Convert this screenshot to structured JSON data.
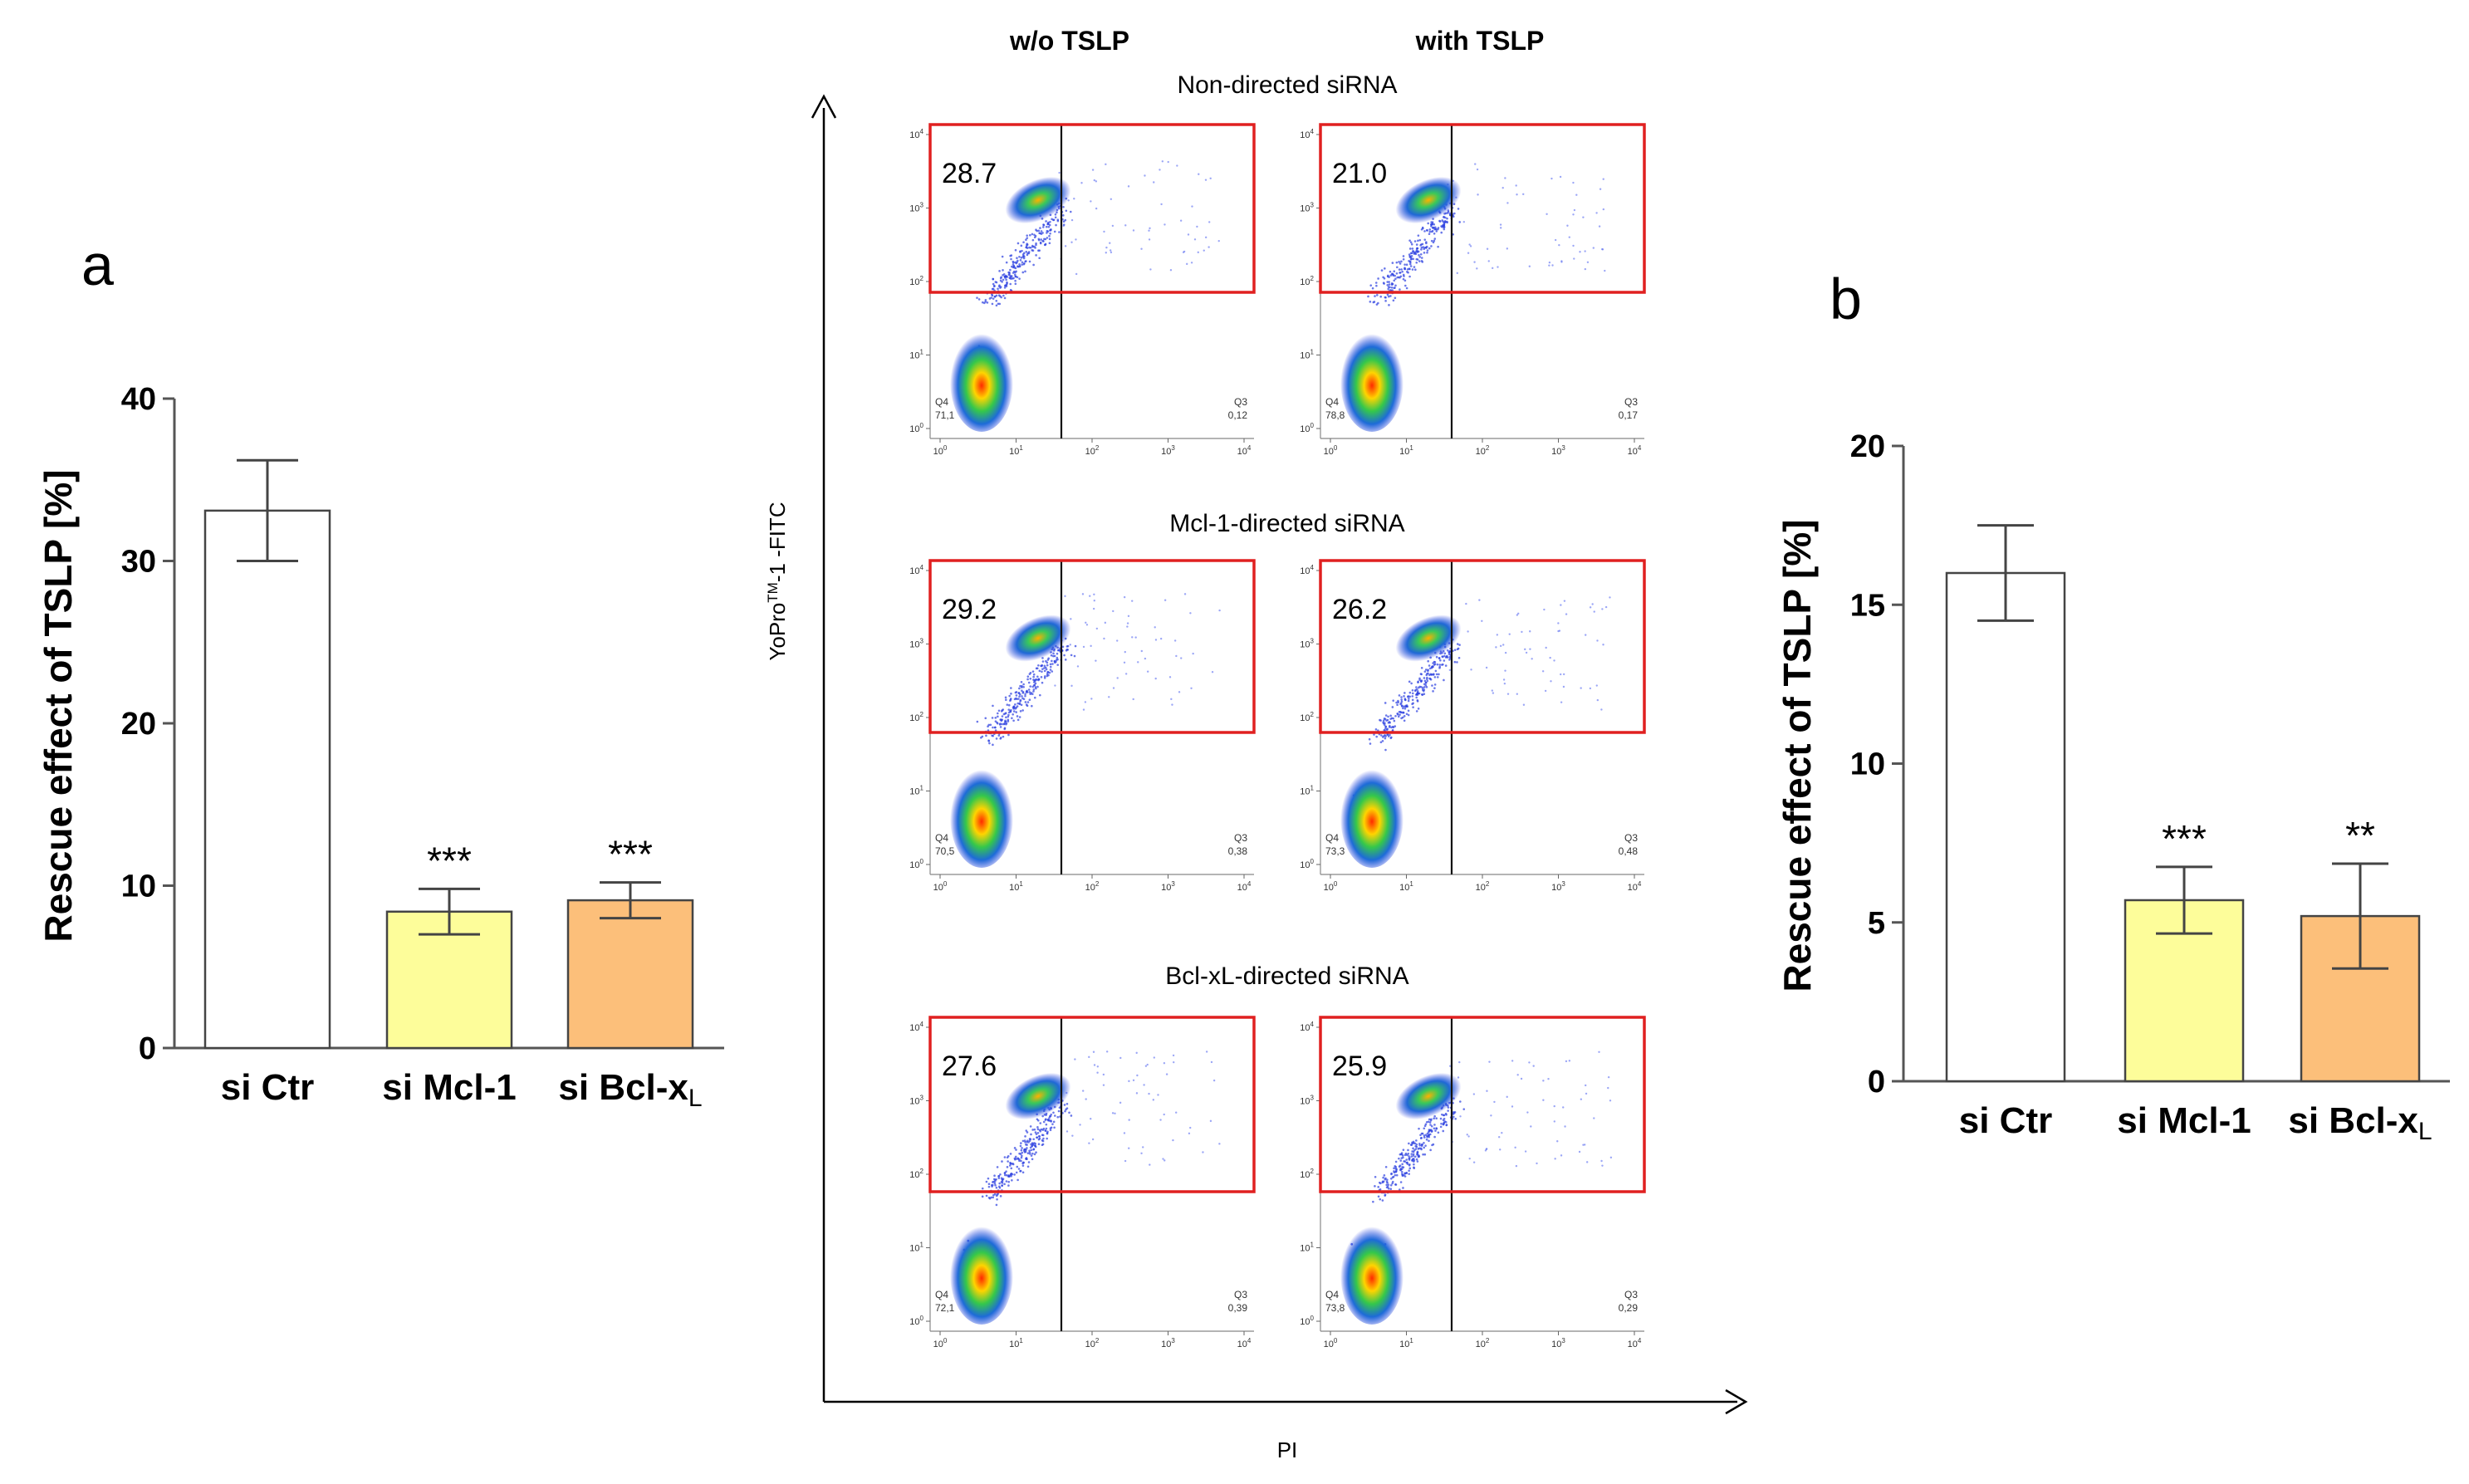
{
  "chart_data": [
    {
      "panel": "a",
      "type": "bar",
      "ylabel": "Rescue effect of TSLP [%]",
      "ylim": [
        0,
        40
      ],
      "yticks": [
        "0",
        "10",
        "20",
        "30",
        "40"
      ],
      "categories": [
        {
          "main": "si Ctr",
          "sub": ""
        },
        {
          "main": "si Mcl-1",
          "sub": ""
        },
        {
          "main": "si Bcl-x",
          "sub": "L"
        }
      ],
      "values": [
        33.1,
        8.4,
        9.1
      ],
      "errors": [
        3.1,
        1.4,
        1.1
      ],
      "significance": [
        "",
        "***",
        "***"
      ],
      "colors": [
        "#ffffff",
        "#fdfd9a",
        "#fcbf7a"
      ]
    },
    {
      "panel": "b",
      "type": "bar",
      "ylabel": "Rescue effect of TSLP [%]",
      "ylim": [
        0,
        20
      ],
      "yticks": [
        "0",
        "5",
        "10",
        "15",
        "20"
      ],
      "categories": [
        {
          "main": "si Ctr",
          "sub": ""
        },
        {
          "main": "si Mcl-1",
          "sub": ""
        },
        {
          "main": "si Bcl-x",
          "sub": "L"
        }
      ],
      "values": [
        16.0,
        5.7,
        5.2
      ],
      "errors": [
        1.5,
        1.05,
        1.65
      ],
      "significance": [
        "",
        "***",
        "**"
      ],
      "colors": [
        "#ffffff",
        "#fdfd9a",
        "#fcbf7a"
      ]
    },
    {
      "panel": "flow",
      "type": "scatter",
      "column_headers": [
        "w/o TSLP",
        "with TSLP"
      ],
      "xlabel": "PI",
      "ylabel_parts": {
        "pre": "YoPro",
        "sup": "TM",
        "post": "-1 -FITC"
      },
      "axis_decades": [
        "10",
        "1",
        "2",
        "3",
        "4"
      ],
      "rows": [
        {
          "title": "Non-directed siRNA",
          "plots": [
            {
              "gate_value": "28.7",
              "q4_label": "Q4",
              "q4_value": "71,1",
              "q3_label": "Q3",
              "q3_value": "0,12"
            },
            {
              "gate_value": "21.0",
              "q4_label": "Q4",
              "q4_value": "78,8",
              "q3_label": "Q3",
              "q3_value": "0,17"
            }
          ]
        },
        {
          "title": "Mcl-1-directed siRNA",
          "plots": [
            {
              "gate_value": "29.2",
              "q4_label": "Q4",
              "q4_value": "70,5",
              "q3_label": "Q3",
              "q3_value": "0,38"
            },
            {
              "gate_value": "26.2",
              "q4_label": "Q4",
              "q4_value": "73,3",
              "q3_label": "Q3",
              "q3_value": "0,48"
            }
          ]
        },
        {
          "title": "Bcl-xL-directed siRNA",
          "plots": [
            {
              "gate_value": "27.6",
              "q4_label": "Q4",
              "q4_value": "72,1",
              "q3_label": "Q3",
              "q3_value": "0,39"
            },
            {
              "gate_value": "25.9",
              "q4_label": "Q4",
              "q4_value": "73,8",
              "q3_label": "Q3",
              "q3_value": "0,29"
            }
          ]
        }
      ]
    }
  ]
}
